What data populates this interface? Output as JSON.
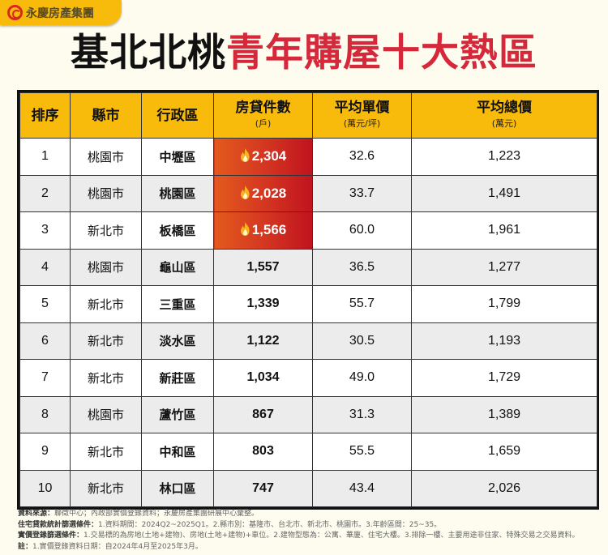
{
  "brand": {
    "name": "永慶房產集團",
    "logo_icon": "yungching-logo-icon",
    "color": "#f8bb0b"
  },
  "title": {
    "part1": "基北北桃",
    "part2": "青年購屋十大熱區",
    "part1_color": "#111111",
    "part2_color": "#d6283b"
  },
  "table": {
    "headers": [
      {
        "label": "排序",
        "sub": ""
      },
      {
        "label": "縣市",
        "sub": ""
      },
      {
        "label": "行政區",
        "sub": ""
      },
      {
        "label": "房貸件數",
        "sub": "(戶)"
      },
      {
        "label": "平均單價",
        "sub": "(萬元/坪)"
      },
      {
        "label": "平均總價",
        "sub": "(萬元)"
      }
    ],
    "rows": [
      {
        "rank": "1",
        "city": "桃園市",
        "district": "中壢區",
        "count": "2,304",
        "unit_price": "32.6",
        "total_price": "1,223",
        "hot": true
      },
      {
        "rank": "2",
        "city": "桃園市",
        "district": "桃園區",
        "count": "2,028",
        "unit_price": "33.7",
        "total_price": "1,491",
        "hot": true
      },
      {
        "rank": "3",
        "city": "新北市",
        "district": "板橋區",
        "count": "1,566",
        "unit_price": "60.0",
        "total_price": "1,961",
        "hot": true
      },
      {
        "rank": "4",
        "city": "桃園市",
        "district": "龜山區",
        "count": "1,557",
        "unit_price": "36.5",
        "total_price": "1,277",
        "hot": false
      },
      {
        "rank": "5",
        "city": "新北市",
        "district": "三重區",
        "count": "1,339",
        "unit_price": "55.7",
        "total_price": "1,799",
        "hot": false
      },
      {
        "rank": "6",
        "city": "新北市",
        "district": "淡水區",
        "count": "1,122",
        "unit_price": "30.5",
        "total_price": "1,193",
        "hot": false
      },
      {
        "rank": "7",
        "city": "新北市",
        "district": "新莊區",
        "count": "1,034",
        "unit_price": "49.0",
        "total_price": "1,729",
        "hot": false
      },
      {
        "rank": "8",
        "city": "桃園市",
        "district": "蘆竹區",
        "count": "867",
        "unit_price": "31.3",
        "total_price": "1,389",
        "hot": false
      },
      {
        "rank": "9",
        "city": "新北市",
        "district": "中和區",
        "count": "803",
        "unit_price": "55.5",
        "total_price": "1,659",
        "hot": false
      },
      {
        "rank": "10",
        "city": "新北市",
        "district": "林口區",
        "count": "747",
        "unit_price": "43.4",
        "total_price": "2,026",
        "hot": false
      }
    ],
    "hot_icon": "flame-icon",
    "hot_gradient": [
      "#e35a1d",
      "#c0131f"
    ]
  },
  "notes": [
    {
      "label": "資料來源：",
      "text": "聯徵中心；內政部實價登錄資料；永慶房產集團研展中心彙整。"
    },
    {
      "label": "住宅貸款統計篩選條件：",
      "text": "1.資料期間：2024Q2~2025Q1。2.縣市別：基隆市、台北市、新北市、桃園市。3.年齡區間：25~35。"
    },
    {
      "label": "實價登錄篩選條件：",
      "text": "1.交易標的為房地(土地+建物)、房地(土地+建物)+車位。2.建物型態為：公寓、華廈、住宅大樓。3.排除一樓、主要用途非住家、特殊交易之交易資料。"
    },
    {
      "label": "註：",
      "text": "1.實價登錄資料日期：自2024年4月至2025年3月。"
    }
  ]
}
